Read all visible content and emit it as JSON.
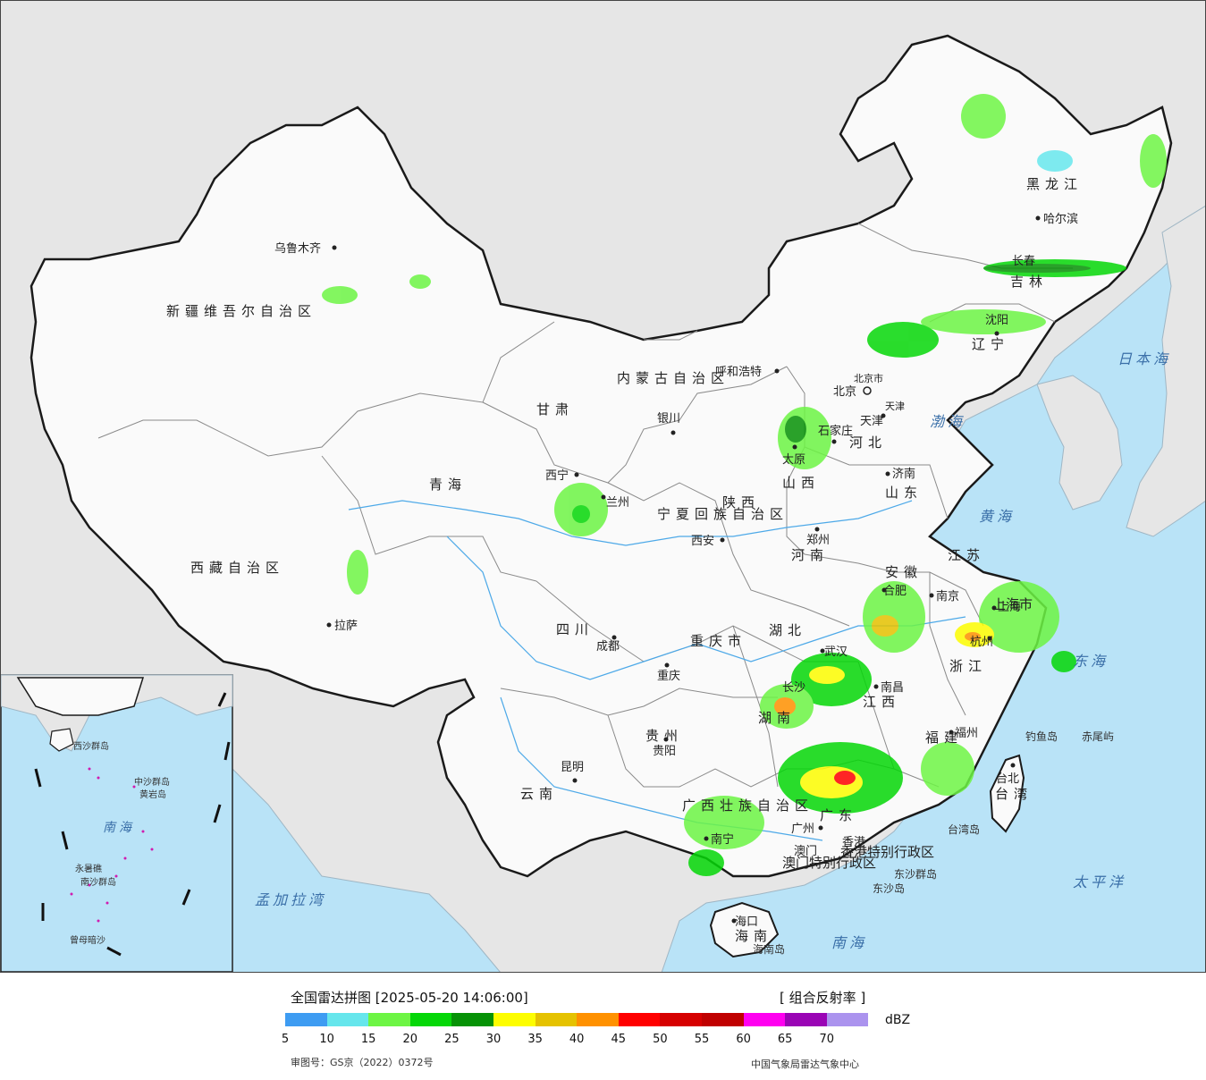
{
  "map": {
    "provinces": [
      "新疆维吾尔自治区",
      "西藏自治区",
      "青海",
      "甘肃",
      "内蒙古自治区",
      "黑龙江",
      "吉林",
      "辽宁",
      "河北",
      "山西",
      "陕西",
      "宁夏回族自治区",
      "山东",
      "河南",
      "江苏",
      "安徽",
      "湖北",
      "四川",
      "重庆市",
      "贵州",
      "云南",
      "湖南",
      "江西",
      "浙江",
      "福建",
      "广西壮族自治区",
      "广东",
      "海南",
      "台湾",
      "香港特别行政区",
      "澳门特别行政区",
      "上海市",
      "北京市",
      "天津"
    ],
    "cities": [
      "乌鲁木齐",
      "拉萨",
      "西宁",
      "兰州",
      "银川",
      "呼和浩特",
      "北京",
      "天津",
      "石家庄",
      "太原",
      "济南",
      "郑州",
      "西安",
      "成都",
      "重庆",
      "贵阳",
      "昆明",
      "南宁",
      "武汉",
      "长沙",
      "南昌",
      "合肥",
      "南京",
      "杭州",
      "福州",
      "广州",
      "香港",
      "澳门",
      "海口",
      "台北",
      "哈尔滨",
      "长春",
      "沈阳",
      "上海"
    ],
    "seas": [
      "日本海",
      "渤海",
      "黄海",
      "东海",
      "太平洋",
      "南海",
      "孟加拉湾"
    ],
    "islands": [
      "钓鱼岛",
      "赤尾屿",
      "台湾岛",
      "东沙群岛",
      "东沙岛",
      "海南岛"
    ],
    "inset_labels": [
      "西沙群岛",
      "中沙群岛",
      "黄岩岛",
      "南沙群岛",
      "曾母暗沙",
      "永暑礁",
      "南海"
    ],
    "colors": {
      "sea": "#b9e3f7",
      "land_foreign": "#e6e6e6",
      "land_china": "#fafafa",
      "border": "#1a1a1a",
      "province_line": "#888888"
    }
  },
  "legend": {
    "title": "全国雷达拼图 [2025-05-20 14:06:00]",
    "product": "[ 组合反射率 ]",
    "unit": "dBZ",
    "ticks": [
      "5",
      "10",
      "15",
      "20",
      "25",
      "30",
      "35",
      "40",
      "45",
      "50",
      "55",
      "60",
      "65",
      "70"
    ],
    "colors": [
      "#3e9cf2",
      "#66e6ec",
      "#6df544",
      "#05d708",
      "#069206",
      "#fdfd00",
      "#e5c200",
      "#ff9100",
      "#ff0000",
      "#d60000",
      "#c00000",
      "#ff00f0",
      "#9a05b5",
      "#ab93ee"
    ],
    "review_no": "审图号：GS京（2022）0372号",
    "source": "中国气象局雷达气象中心"
  }
}
